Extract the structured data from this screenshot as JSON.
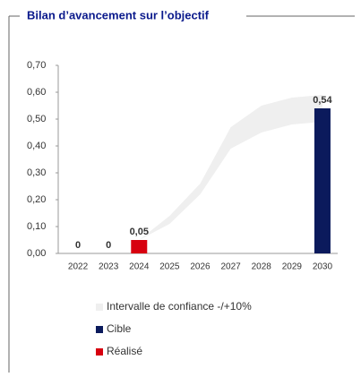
{
  "chart_data": {
    "type": "bar",
    "title": "Bilan d’avancement sur l’objectif",
    "categories": [
      "2022",
      "2023",
      "2024",
      "2025",
      "2026",
      "2027",
      "2028",
      "2029",
      "2030"
    ],
    "series": [
      {
        "name": "Intervalle de confiance -/+10%",
        "type": "band",
        "color": "#efefef",
        "lower": [
          null,
          null,
          0.05,
          0.11,
          0.22,
          0.39,
          0.45,
          0.48,
          0.49
        ],
        "upper": [
          null,
          null,
          0.05,
          0.14,
          0.26,
          0.47,
          0.55,
          0.58,
          0.59
        ]
      },
      {
        "name": "Cible",
        "type": "bar",
        "color": "#0b1a5c",
        "values": [
          null,
          null,
          null,
          null,
          null,
          null,
          null,
          null,
          0.54
        ],
        "value_labels": [
          null,
          null,
          null,
          null,
          null,
          null,
          null,
          null,
          "0,54"
        ]
      },
      {
        "name": "Réalisé",
        "type": "bar",
        "color": "#d7000f",
        "values": [
          0,
          0,
          0.05,
          null,
          null,
          null,
          null,
          null,
          null
        ],
        "value_labels": [
          "0",
          "0",
          "0,05",
          null,
          null,
          null,
          null,
          null,
          null
        ]
      }
    ],
    "ylim": [
      0,
      0.7
    ],
    "yticks": [
      {
        "value": 0,
        "label": "0,00"
      },
      {
        "value": 0.1,
        "label": "0,10"
      },
      {
        "value": 0.2,
        "label": "0,20"
      },
      {
        "value": 0.3,
        "label": "0,30"
      },
      {
        "value": 0.4,
        "label": "0,40"
      },
      {
        "value": 0.5,
        "label": "0,50"
      },
      {
        "value": 0.6,
        "label": "0,60"
      },
      {
        "value": 0.7,
        "label": "0,70"
      }
    ]
  }
}
